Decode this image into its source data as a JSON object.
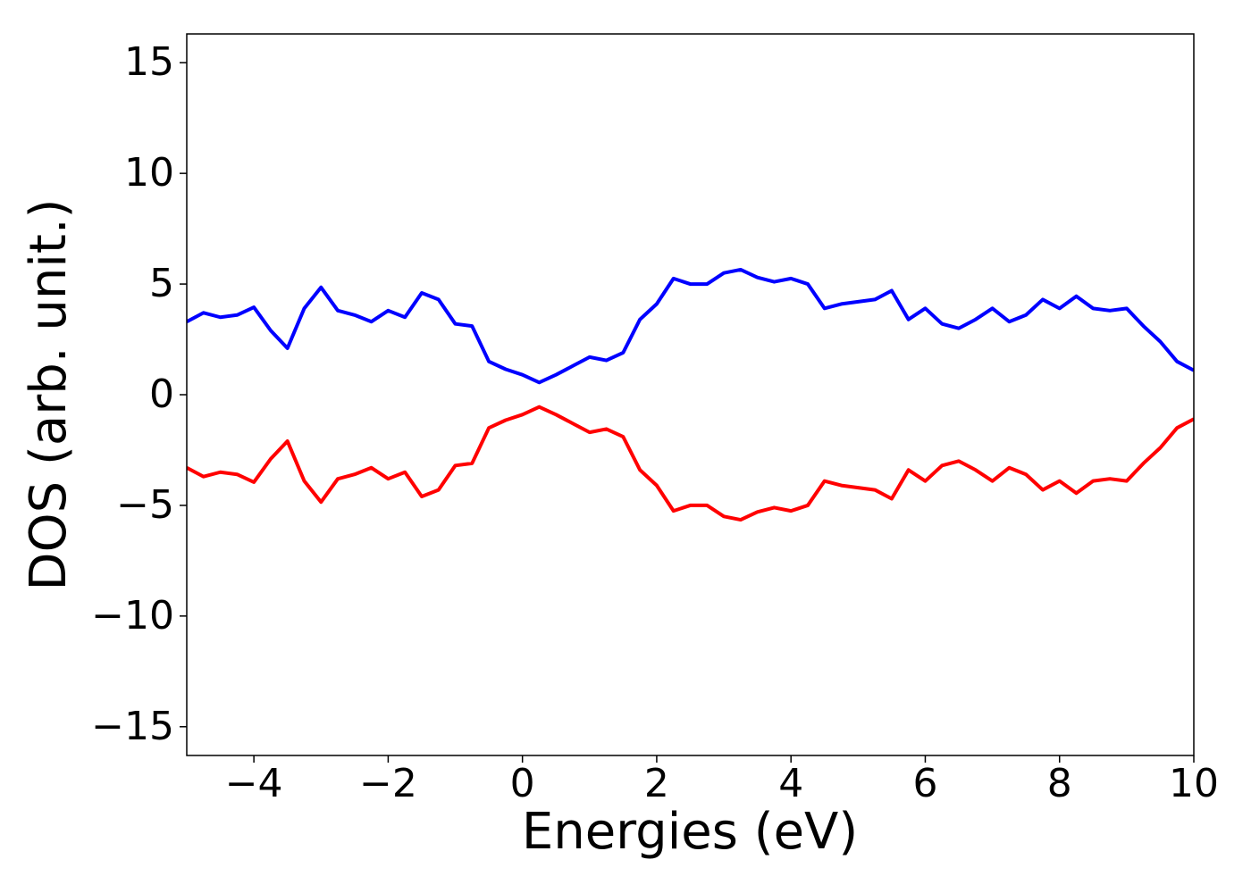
{
  "chart_data": {
    "type": "line",
    "x_label": "Energies (eV)",
    "y_label": "DOS (arb. unit.)",
    "x": [
      -5,
      -4.75,
      -4.5,
      -4.25,
      -4,
      -3.75,
      -3.5,
      -3.25,
      -3,
      -2.75,
      -2.5,
      -2.25,
      -2,
      -1.75,
      -1.5,
      -1.25,
      -1,
      -0.75,
      -0.5,
      -0.25,
      0,
      0.25,
      0.5,
      0.75,
      1,
      1.25,
      1.5,
      1.75,
      2,
      2.25,
      2.5,
      2.75,
      3,
      3.25,
      3.5,
      3.75,
      4,
      4.25,
      4.5,
      4.75,
      5,
      5.25,
      5.5,
      5.75,
      6,
      6.25,
      6.5,
      6.75,
      7,
      7.25,
      7.5,
      7.75,
      8,
      8.25,
      8.5,
      8.75,
      9,
      9.25,
      9.5,
      9.75,
      10
    ],
    "series": [
      {
        "color": "#0000ff",
        "values": [
          3.3,
          3.7,
          3.5,
          3.6,
          3.95,
          2.9,
          2.1,
          3.9,
          4.85,
          3.8,
          3.6,
          3.3,
          3.8,
          3.5,
          4.6,
          4.3,
          3.2,
          3.1,
          1.5,
          1.15,
          0.9,
          0.55,
          0.9,
          1.3,
          1.7,
          1.55,
          1.9,
          3.4,
          4.1,
          5.25,
          5.0,
          5.0,
          5.5,
          5.65,
          5.3,
          5.1,
          5.25,
          5.0,
          3.9,
          4.1,
          4.2,
          4.3,
          4.7,
          3.4,
          3.9,
          3.2,
          3.0,
          3.4,
          3.9,
          3.3,
          3.6,
          4.3,
          3.9,
          4.45,
          3.9,
          3.8,
          3.9,
          3.1,
          2.4,
          1.5,
          1.1
        ]
      },
      {
        "color": "#ff0000",
        "values": [
          -3.3,
          -3.7,
          -3.5,
          -3.6,
          -3.95,
          -2.9,
          -2.1,
          -3.9,
          -4.85,
          -3.8,
          -3.6,
          -3.3,
          -3.8,
          -3.5,
          -4.6,
          -4.3,
          -3.2,
          -3.1,
          -1.5,
          -1.15,
          -0.9,
          -0.55,
          -0.9,
          -1.3,
          -1.7,
          -1.55,
          -1.9,
          -3.4,
          -4.1,
          -5.25,
          -5.0,
          -5.0,
          -5.5,
          -5.65,
          -5.3,
          -5.1,
          -5.25,
          -5.0,
          -3.9,
          -4.1,
          -4.2,
          -4.3,
          -4.7,
          -3.4,
          -3.9,
          -3.2,
          -3.0,
          -3.4,
          -3.9,
          -3.3,
          -3.6,
          -4.3,
          -3.9,
          -4.45,
          -3.9,
          -3.8,
          -3.9,
          -3.1,
          -2.4,
          -1.5,
          -1.1
        ]
      }
    ],
    "xlim": [
      -5,
      10
    ],
    "ylim": [
      -16.3,
      16.3
    ],
    "xticks": [
      {
        "value": -4,
        "label": "−4"
      },
      {
        "value": -2,
        "label": "−2"
      },
      0,
      2,
      4,
      6,
      8,
      10
    ],
    "yticks": [
      {
        "value": -15,
        "label": "−15"
      },
      {
        "value": -10,
        "label": "−10"
      },
      {
        "value": -5,
        "label": "−5"
      },
      0,
      5,
      10,
      15
    ],
    "grid": false
  }
}
